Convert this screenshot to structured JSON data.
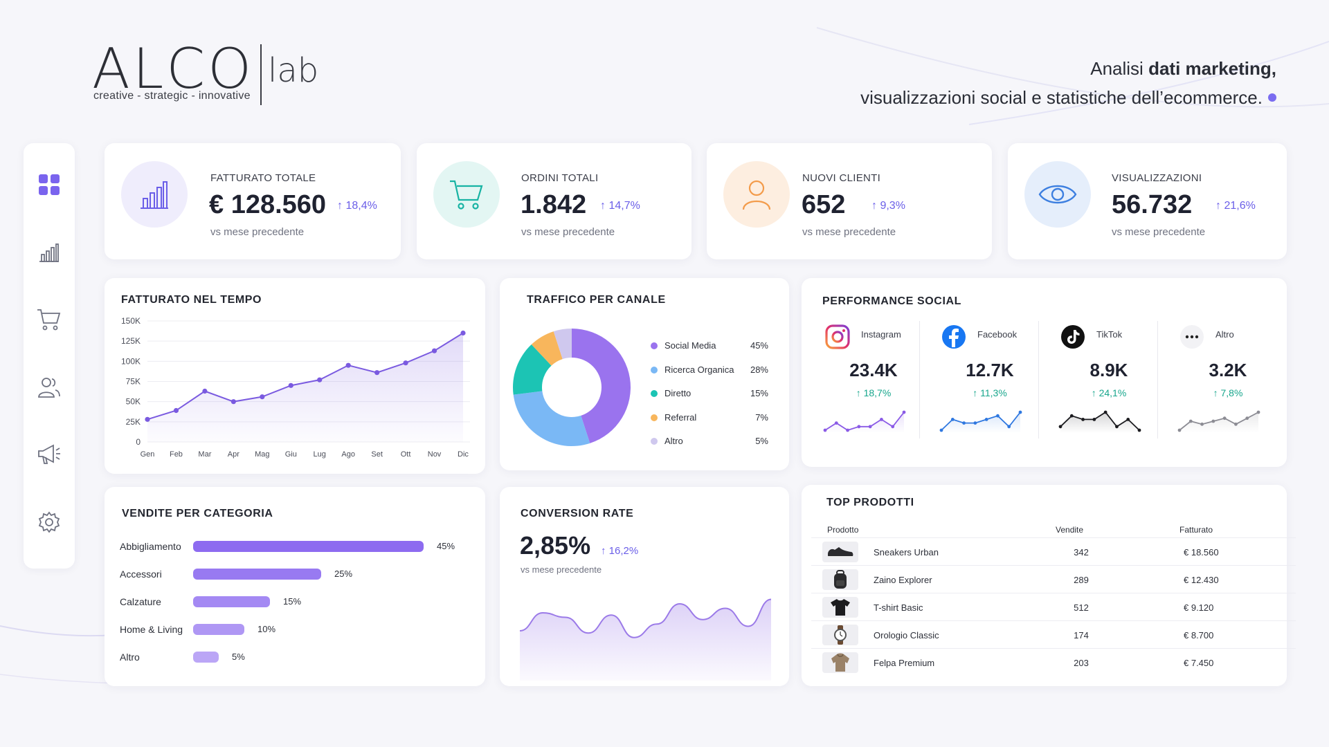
{
  "header": {
    "logo_word": "ALCO",
    "logo_suffix": "lab",
    "logo_tagline": "creative - strategic - innovative",
    "headline_pre": "Analisi ",
    "headline_strong": "dati marketing,",
    "headline_line2": "visualizzazioni social e statistiche dell’ecommerce."
  },
  "sidebar": {
    "items": [
      {
        "icon": "dashboard-grid-icon",
        "active": true
      },
      {
        "icon": "bar-chart-icon",
        "active": false
      },
      {
        "icon": "cart-icon",
        "active": false
      },
      {
        "icon": "users-icon",
        "active": false
      },
      {
        "icon": "megaphone-icon",
        "active": false
      },
      {
        "icon": "gear-icon",
        "active": false
      }
    ]
  },
  "kpis": [
    {
      "label": "FATTURATO TOTALE",
      "value": "€ 128.560",
      "change": "↑ 18,4%",
      "sub": "vs mese precedente",
      "icon": "bar-chart-icon",
      "color": "#6a5ee8",
      "bg": "#efedfc"
    },
    {
      "label": "ORDINI TOTALI",
      "value": "1.842",
      "change": "↑ 14,7%",
      "sub": "vs mese precedente",
      "icon": "cart-icon",
      "color": "#17b3a3",
      "bg": "#e3f6f3"
    },
    {
      "label": "NUOVI CLIENTI",
      "value": "652",
      "change": "↑ 9,3%",
      "sub": "vs mese precedente",
      "icon": "user-icon",
      "color": "#f39b4a",
      "bg": "#fdeee0"
    },
    {
      "label": "VISUALIZZAZIONI",
      "value": "56.732",
      "change": "↑ 21,6%",
      "sub": "vs mese precedente",
      "icon": "eye-icon",
      "color": "#3d7fe0",
      "bg": "#e5eefb"
    }
  ],
  "revenue_chart": {
    "title": "FATTURATO NEL TEMPO",
    "chart_data": {
      "type": "area",
      "categories": [
        "Gen",
        "Feb",
        "Mar",
        "Apr",
        "Mag",
        "Giu",
        "Lug",
        "Ago",
        "Set",
        "Ott",
        "Nov",
        "Dic"
      ],
      "y_ticks": [
        "150K",
        "125K",
        "100K",
        "75K",
        "50K",
        "25K",
        "0"
      ],
      "ylim": [
        0,
        150000
      ],
      "values": [
        28000,
        39000,
        63000,
        50000,
        56000,
        70000,
        77000,
        95000,
        86000,
        98000,
        113000,
        135000
      ],
      "color": "#7a5ae0"
    }
  },
  "traffic": {
    "title": "TRAFFICO PER CANALE",
    "chart_data": {
      "type": "pie",
      "slices": [
        {
          "name": "Social Media",
          "value": 45,
          "label": "45%",
          "color": "#9a73ee"
        },
        {
          "name": "Ricerca Organica",
          "value": 28,
          "label": "28%",
          "color": "#7ab8f5"
        },
        {
          "name": "Diretto",
          "value": 15,
          "label": "15%",
          "color": "#1cc4b4"
        },
        {
          "name": "Referral",
          "value": 7,
          "label": "7%",
          "color": "#f8b65c"
        },
        {
          "name": "Altro",
          "value": 5,
          "label": "5%",
          "color": "#cfc8ee"
        }
      ]
    }
  },
  "social": {
    "title": "PERFORMANCE SOCIAL",
    "items": [
      {
        "name": "Instagram",
        "icon": "instagram-icon",
        "value": "23.4K",
        "change": "↑ 18,7%",
        "color": "#8a5ae6",
        "spark": [
          3,
          5,
          3,
          4,
          4,
          6,
          4,
          8
        ]
      },
      {
        "name": "Facebook",
        "icon": "facebook-icon",
        "value": "12.7K",
        "change": "↑ 11,3%",
        "color": "#2f78e0",
        "spark": [
          2,
          5,
          4,
          4,
          5,
          6,
          3,
          7
        ]
      },
      {
        "name": "TikTok",
        "icon": "tiktok-icon",
        "value": "8.9K",
        "change": "↑ 24,1%",
        "color": "#1b1b1f",
        "spark": [
          3,
          6,
          5,
          5,
          7,
          3,
          5,
          2
        ]
      },
      {
        "name": "Altro",
        "icon": "more-icon",
        "value": "3.2K",
        "change": "↑ 7,8%",
        "color": "#8c8c94",
        "spark": [
          2,
          5,
          4,
          5,
          6,
          4,
          6,
          8
        ]
      }
    ]
  },
  "categories": {
    "title": "VENDITE PER CATEGORIA",
    "chart_data": {
      "type": "bar",
      "categories": [
        "Abbigliamento",
        "Accessori",
        "Calzature",
        "Home & Living",
        "Altro"
      ],
      "values": [
        45,
        25,
        15,
        10,
        5
      ],
      "labels": [
        "45%",
        "25%",
        "15%",
        "10%",
        "5%"
      ],
      "xlim": [
        0,
        45
      ],
      "color": "#8d6bf0"
    }
  },
  "conversion": {
    "title": "CONVERSION RATE",
    "value": "2,85%",
    "change": "↑ 16,2%",
    "sub": "vs mese precedente",
    "chart_data": {
      "type": "area",
      "values": [
        3.2,
        4.8,
        4.4,
        3.0,
        4.6,
        2.6,
        3.8,
        5.6,
        4.2,
        5.2,
        3.6,
        6.0
      ],
      "ylim": [
        0,
        8
      ],
      "color": "#9b7ae8"
    }
  },
  "top_products": {
    "title": "TOP PRODOTTI",
    "headers": {
      "product": "Prodotto",
      "sales": "Vendite",
      "revenue": "Fatturato"
    },
    "rows": [
      {
        "name": "Sneakers Urban",
        "sales": "342",
        "revenue": "€ 18.560",
        "icon": "sneaker-icon"
      },
      {
        "name": "Zaino Explorer",
        "sales": "289",
        "revenue": "€ 12.430",
        "icon": "backpack-icon"
      },
      {
        "name": "T-shirt Basic",
        "sales": "512",
        "revenue": "€ 9.120",
        "icon": "tshirt-icon"
      },
      {
        "name": "Orologio Classic",
        "sales": "174",
        "revenue": "€ 8.700",
        "icon": "watch-icon"
      },
      {
        "name": "Felpa Premium",
        "sales": "203",
        "revenue": "€ 7.450",
        "icon": "hoodie-icon"
      }
    ]
  }
}
